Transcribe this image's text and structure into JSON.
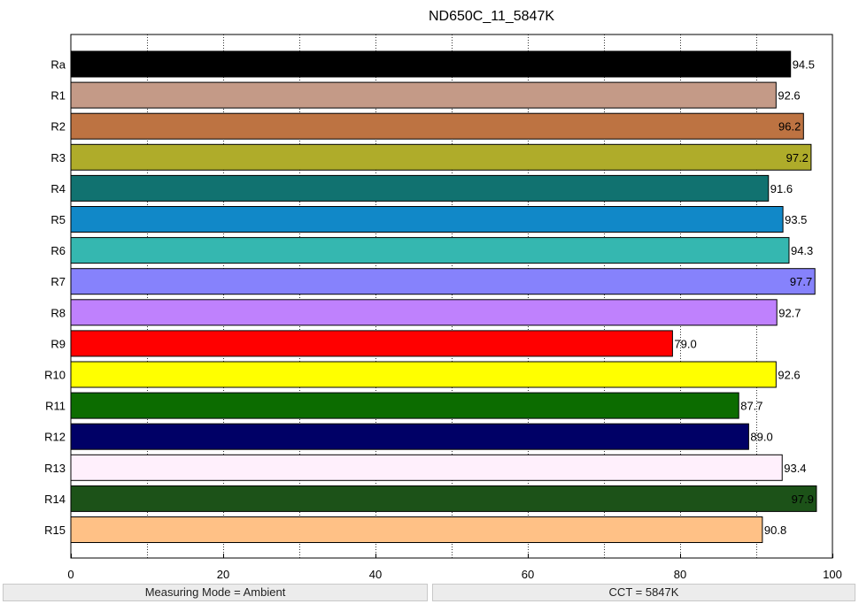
{
  "chart_data": {
    "type": "bar",
    "orientation": "horizontal",
    "title": "ND650C_11_5847K",
    "xlabel": "",
    "ylabel": "",
    "xlim": [
      0,
      100
    ],
    "xticks": [
      0,
      20,
      40,
      60,
      80,
      100
    ],
    "grid": "vertical dotted",
    "categories": [
      "Ra",
      "R1",
      "R2",
      "R3",
      "R4",
      "R5",
      "R6",
      "R7",
      "R8",
      "R9",
      "R10",
      "R11",
      "R12",
      "R13",
      "R14",
      "R15"
    ],
    "values": [
      94.5,
      92.6,
      96.2,
      97.2,
      91.6,
      93.5,
      94.3,
      97.7,
      92.7,
      79.0,
      92.6,
      87.7,
      89.0,
      93.4,
      97.9,
      90.8
    ],
    "value_labels": [
      "94.5",
      "92.6",
      "96.2",
      "97.2",
      "91.6",
      "93.5",
      "94.3",
      "97.7",
      "92.7",
      "79.0",
      "92.6",
      "87.7",
      "89.0",
      "93.4",
      "97.9",
      "90.8"
    ],
    "colors": [
      "#000000",
      "#c49a87",
      "#bd7342",
      "#afac2a",
      "#117270",
      "#1188c8",
      "#35b7b0",
      "#8682fc",
      "#bf81fd",
      "#ff0000",
      "#ffff00",
      "#0c6c00",
      "#000066",
      "#fff0fc",
      "#1c5218",
      "#ffc186"
    ]
  },
  "status": {
    "measuring_mode": "Measuring Mode = Ambient",
    "cct": "CCT = 5847K"
  }
}
